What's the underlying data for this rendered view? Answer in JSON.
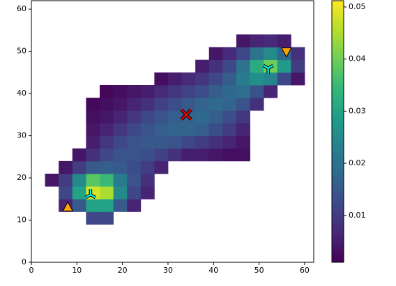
{
  "chart_data": {
    "type": "heatmap",
    "xbins": [
      3,
      6,
      9,
      12,
      15,
      18,
      21,
      24,
      27,
      30,
      33,
      36,
      39,
      42,
      45,
      48,
      51,
      54,
      57,
      60
    ],
    "ybins": [
      9,
      12,
      15,
      18,
      21,
      24,
      27,
      30,
      33,
      36,
      39,
      42,
      45,
      48,
      51,
      54
    ],
    "z": [
      [
        null,
        null,
        null,
        0.012,
        0.012,
        null,
        null,
        null,
        null,
        null,
        null,
        null,
        null,
        null,
        null,
        null,
        null,
        null,
        null
      ],
      [
        null,
        0.006,
        0.015,
        0.03,
        0.03,
        0.015,
        0.006,
        null,
        null,
        null,
        null,
        null,
        null,
        null,
        null,
        null,
        null,
        null,
        null
      ],
      [
        null,
        0.012,
        0.03,
        0.048,
        0.045,
        0.025,
        0.012,
        0.006,
        null,
        null,
        null,
        null,
        null,
        null,
        null,
        null,
        null,
        null,
        null
      ],
      [
        0.004,
        0.01,
        0.025,
        0.038,
        0.035,
        0.022,
        0.014,
        0.008,
        null,
        null,
        null,
        null,
        null,
        null,
        null,
        null,
        null,
        null,
        null
      ],
      [
        null,
        0.004,
        0.01,
        0.015,
        0.016,
        0.015,
        0.013,
        0.01,
        0.006,
        null,
        null,
        null,
        null,
        null,
        null,
        null,
        null,
        null,
        null
      ],
      [
        null,
        null,
        0.004,
        0.008,
        0.012,
        0.014,
        0.014,
        0.013,
        0.011,
        0.008,
        0.005,
        0.005,
        0.004,
        0.003,
        0.003,
        null,
        null,
        null,
        null
      ],
      [
        null,
        null,
        null,
        0.005,
        0.009,
        0.012,
        0.014,
        0.015,
        0.015,
        0.014,
        0.012,
        0.01,
        0.008,
        0.006,
        0.004,
        null,
        null,
        null,
        null
      ],
      [
        null,
        null,
        null,
        0.004,
        0.006,
        0.009,
        0.012,
        0.014,
        0.016,
        0.017,
        0.017,
        0.016,
        0.013,
        0.01,
        0.006,
        null,
        null,
        null,
        null
      ],
      [
        null,
        null,
        null,
        0.003,
        0.004,
        0.006,
        0.009,
        0.012,
        0.014,
        0.016,
        0.017,
        0.018,
        0.016,
        0.013,
        0.009,
        null,
        null,
        null,
        null
      ],
      [
        null,
        null,
        null,
        0.002,
        0.003,
        0.004,
        0.006,
        0.008,
        0.011,
        0.013,
        0.015,
        0.017,
        0.018,
        0.017,
        0.014,
        0.008,
        null,
        null,
        null
      ],
      [
        null,
        null,
        null,
        null,
        0.002,
        0.003,
        0.004,
        0.005,
        0.007,
        0.009,
        0.011,
        0.013,
        0.016,
        0.018,
        0.019,
        0.014,
        0.006,
        null,
        null
      ],
      [
        null,
        null,
        null,
        null,
        null,
        null,
        null,
        null,
        0.003,
        0.005,
        0.007,
        0.009,
        0.012,
        0.016,
        0.022,
        0.026,
        0.024,
        0.012,
        0.004
      ],
      [
        null,
        null,
        null,
        null,
        null,
        null,
        null,
        null,
        null,
        null,
        null,
        0.005,
        0.008,
        0.012,
        0.02,
        0.032,
        0.04,
        0.028,
        0.01
      ],
      [
        null,
        null,
        null,
        null,
        null,
        null,
        null,
        null,
        null,
        null,
        null,
        null,
        0.004,
        0.007,
        0.012,
        0.02,
        0.025,
        0.018,
        0.008
      ],
      [
        null,
        null,
        null,
        null,
        null,
        null,
        null,
        null,
        null,
        null,
        null,
        null,
        null,
        null,
        0.004,
        0.006,
        0.007,
        0.005,
        null
      ]
    ],
    "colors": [
      "#440154",
      "#482878",
      "#3e4989",
      "#31688e",
      "#26828e",
      "#1f9e89",
      "#35b779",
      "#6ece58",
      "#b5de2b",
      "#fde725"
    ],
    "clim": [
      0.001,
      0.0512
    ],
    "cticks": [
      0.01,
      0.02,
      0.03,
      0.04,
      0.05
    ],
    "xlim": [
      0,
      62
    ],
    "ylim": [
      0,
      62
    ],
    "xticks": [
      0,
      10,
      20,
      30,
      40,
      50,
      60
    ],
    "yticks": [
      0,
      10,
      20,
      30,
      40,
      50,
      60
    ],
    "markers": [
      {
        "x": 13,
        "y": 16,
        "shape": "tri_down",
        "color": "#00ffff"
      },
      {
        "x": 52,
        "y": 46,
        "shape": "tri_up",
        "color": "#00ffff"
      },
      {
        "x": 34,
        "y": 35,
        "shape": "x",
        "color": "#ff0000"
      },
      {
        "x": 8,
        "y": 13,
        "shape": "triangle_up",
        "color": "#ffa500"
      },
      {
        "x": 56,
        "y": 50,
        "shape": "triangle_down",
        "color": "#ffa500"
      }
    ]
  }
}
